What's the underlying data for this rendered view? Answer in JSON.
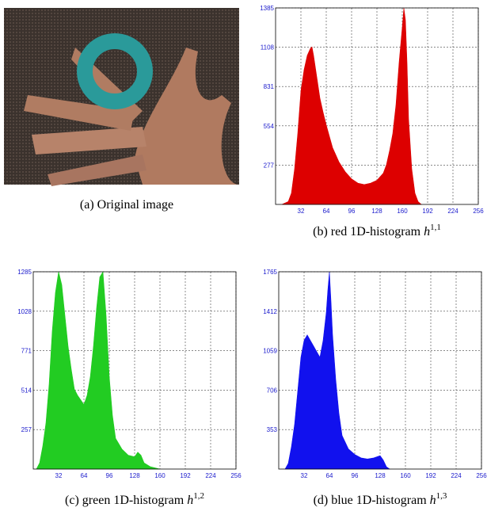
{
  "image_caption": "(a)  Original image",
  "chart_data": [
    {
      "type": "area",
      "caption": "(b)  red 1D-histogram ",
      "caption_var": "h",
      "caption_sup": "1,1",
      "color": "#dd0000",
      "x": [
        8,
        16,
        20,
        24,
        28,
        32,
        36,
        40,
        44,
        46,
        48,
        52,
        56,
        60,
        64,
        68,
        72,
        80,
        88,
        96,
        104,
        112,
        120,
        128,
        136,
        140,
        144,
        148,
        152,
        156,
        160,
        162,
        164,
        166,
        168,
        172,
        176,
        180,
        184
      ],
      "values": [
        0,
        20,
        80,
        250,
        500,
        800,
        950,
        1050,
        1100,
        1110,
        1050,
        900,
        750,
        650,
        560,
        480,
        400,
        300,
        230,
        180,
        150,
        140,
        150,
        170,
        220,
        280,
        380,
        500,
        700,
        1000,
        1250,
        1385,
        1300,
        1000,
        600,
        250,
        80,
        20,
        0
      ],
      "xlim": [
        0,
        256
      ],
      "xticks": [
        32,
        64,
        96,
        128,
        160,
        192,
        224,
        256
      ],
      "ylim": [
        0,
        1385
      ],
      "yticks": [
        277,
        554,
        831,
        1108,
        1385
      ],
      "grid": true
    },
    {
      "type": "area",
      "caption": "(c)  green 1D-histogram ",
      "caption_var": "h",
      "caption_sup": "1,2",
      "color": "#22cc22",
      "x": [
        4,
        8,
        12,
        16,
        20,
        24,
        28,
        32,
        36,
        40,
        44,
        48,
        52,
        56,
        60,
        64,
        68,
        72,
        76,
        80,
        84,
        88,
        92,
        96,
        100,
        104,
        112,
        120,
        128,
        132,
        136,
        140,
        148,
        156,
        160
      ],
      "values": [
        0,
        40,
        150,
        300,
        550,
        900,
        1150,
        1285,
        1200,
        1000,
        800,
        650,
        520,
        480,
        450,
        420,
        480,
        600,
        800,
        1050,
        1250,
        1285,
        1000,
        600,
        350,
        200,
        130,
        90,
        80,
        110,
        90,
        40,
        15,
        5,
        0
      ],
      "xlim": [
        0,
        256
      ],
      "xticks": [
        32,
        64,
        96,
        128,
        160,
        192,
        224,
        256
      ],
      "ylim": [
        0,
        1285
      ],
      "yticks": [
        257,
        514,
        771,
        1028,
        1285
      ],
      "grid": true
    },
    {
      "type": "area",
      "caption": "(d)  blue 1D-histogram ",
      "caption_var": "h",
      "caption_sup": "1,3",
      "color": "#1111ee",
      "x": [
        8,
        12,
        16,
        20,
        24,
        28,
        32,
        36,
        40,
        44,
        48,
        52,
        56,
        60,
        62,
        64,
        66,
        68,
        72,
        76,
        80,
        88,
        96,
        104,
        112,
        120,
        128,
        132,
        136,
        140
      ],
      "values": [
        0,
        50,
        200,
        400,
        700,
        1000,
        1150,
        1200,
        1150,
        1100,
        1050,
        1000,
        1150,
        1400,
        1600,
        1765,
        1500,
        1200,
        800,
        500,
        300,
        180,
        130,
        100,
        90,
        100,
        120,
        80,
        20,
        0
      ],
      "xlim": [
        0,
        256
      ],
      "xticks": [
        32,
        64,
        96,
        128,
        160,
        192,
        224,
        256
      ],
      "ylim": [
        0,
        1765
      ],
      "yticks": [
        353,
        706,
        1059,
        1412,
        1765
      ],
      "grid": true
    }
  ]
}
